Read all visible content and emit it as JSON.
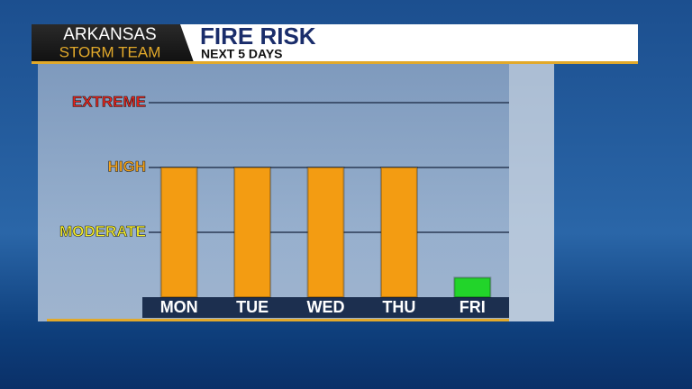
{
  "logo": {
    "line1": "ARKANSAS",
    "line2": "STORM TEAM"
  },
  "chart_data": {
    "type": "bar",
    "title": "FIRE RISK",
    "subtitle": "NEXT 5 DAYS",
    "categories": [
      "MON",
      "TUE",
      "WED",
      "THU",
      "FRI"
    ],
    "values": [
      2,
      2,
      2,
      2,
      0.3
    ],
    "colors": [
      "#f39c12",
      "#f39c12",
      "#f39c12",
      "#f39c12",
      "#22d42a"
    ],
    "ylim": [
      0,
      3.5
    ],
    "yticks": [
      {
        "value": 1,
        "label": "MODERATE"
      },
      {
        "value": 2,
        "label": "HIGH"
      },
      {
        "value": 3,
        "label": "EXTREME"
      }
    ],
    "ytick_colors": [
      "#f4ee2a",
      "#f7a51c",
      "#e8231c"
    ],
    "grid": true
  }
}
